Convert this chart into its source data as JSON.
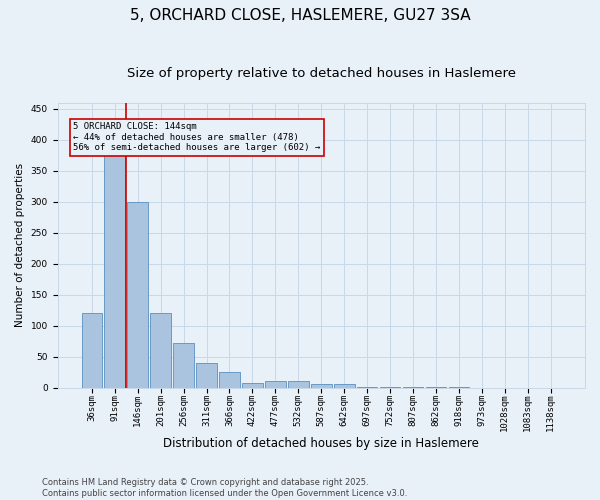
{
  "title_line1": "5, ORCHARD CLOSE, HASLEMERE, GU27 3SA",
  "title_line2": "Size of property relative to detached houses in Haslemere",
  "xlabel": "Distribution of detached houses by size in Haslemere",
  "ylabel": "Number of detached properties",
  "categories": [
    "36sqm",
    "91sqm",
    "146sqm",
    "201sqm",
    "256sqm",
    "311sqm",
    "366sqm",
    "422sqm",
    "477sqm",
    "532sqm",
    "587sqm",
    "642sqm",
    "697sqm",
    "752sqm",
    "807sqm",
    "862sqm",
    "918sqm",
    "973sqm",
    "1028sqm",
    "1083sqm",
    "1138sqm"
  ],
  "values": [
    120,
    375,
    300,
    120,
    72,
    40,
    25,
    7,
    10,
    10,
    5,
    5,
    1,
    1,
    1,
    1,
    1,
    0,
    0,
    0,
    0
  ],
  "bar_color": "#aac4e0",
  "bar_edge_color": "#5a8fc0",
  "grid_color": "#c8d8e8",
  "bg_color": "#e8f0f8",
  "annotation_line1": "5 ORCHARD CLOSE: 144sqm",
  "annotation_line2": "← 44% of detached houses are smaller (478)",
  "annotation_line3": "56% of semi-detached houses are larger (602) →",
  "annotation_box_color": "#cc0000",
  "ylim": [
    0,
    460
  ],
  "yticks": [
    0,
    50,
    100,
    150,
    200,
    250,
    300,
    350,
    400,
    450
  ],
  "footer_text": "Contains HM Land Registry data © Crown copyright and database right 2025.\nContains public sector information licensed under the Open Government Licence v3.0.",
  "title_fontsize": 11,
  "subtitle_fontsize": 9.5,
  "xlabel_fontsize": 8.5,
  "ylabel_fontsize": 7.5,
  "tick_fontsize": 6.5,
  "annotation_fontsize": 6.5,
  "footer_fontsize": 6
}
